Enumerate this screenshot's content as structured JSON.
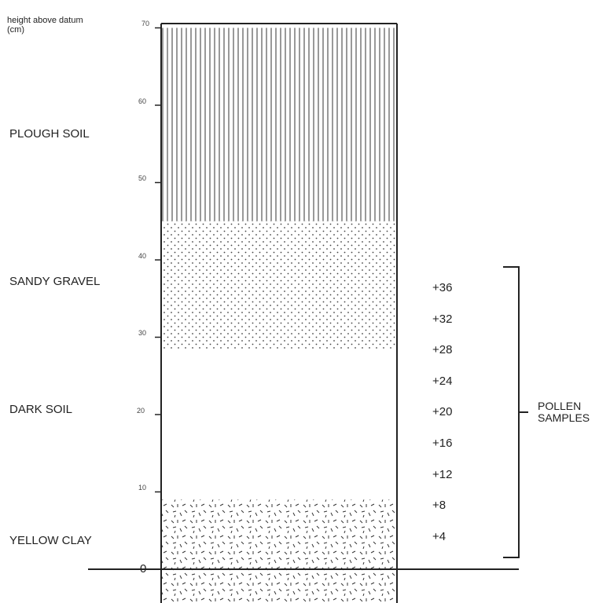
{
  "axis": {
    "title_line1": "height above datum",
    "title_line2": "(cm)",
    "unit": "cm",
    "ticks": [
      "0",
      "10",
      "20",
      "30",
      "40",
      "50",
      "60",
      "70"
    ]
  },
  "layers": [
    {
      "name": "PLOUGH SOIL",
      "from_cm": 45,
      "to_cm": 70,
      "pattern": "vertical-hatch"
    },
    {
      "name": "SANDY GRAVEL",
      "from_cm": 28.5,
      "to_cm": 45,
      "pattern": "dots"
    },
    {
      "name": "DARK SOIL",
      "from_cm": 9,
      "to_cm": 28.5,
      "pattern": "blank"
    },
    {
      "name": "YELLOW CLAY",
      "from_cm": -5,
      "to_cm": 9,
      "pattern": "dashes"
    }
  ],
  "pollen_samples": {
    "label_line1": "POLLEN",
    "label_line2": "SAMPLES",
    "marker": "+",
    "heights": [
      "36",
      "32",
      "28",
      "24",
      "20",
      "16",
      "12",
      "8",
      "4"
    ]
  },
  "datum_label": "0"
}
